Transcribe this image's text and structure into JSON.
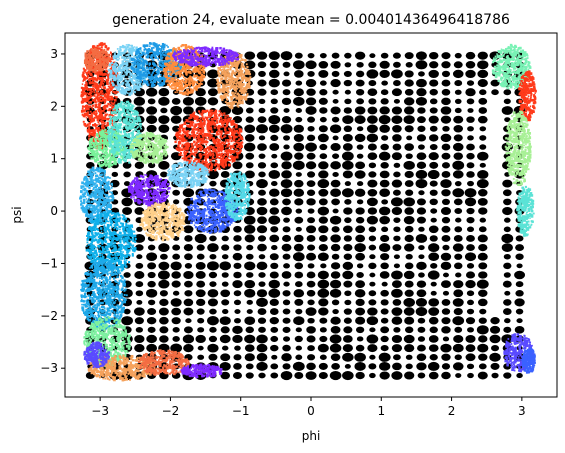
{
  "chart_data": {
    "type": "scatter",
    "title": "generation 24, evaluate mean = 0.00401436496418786",
    "xlabel": "phi",
    "ylabel": "psi",
    "xlim": [
      -3.5,
      3.5
    ],
    "ylim": [
      -3.55,
      3.4
    ],
    "x_ticks": [
      -3,
      -2,
      -1,
      0,
      1,
      2,
      3
    ],
    "y_ticks": [
      -3,
      -2,
      -1,
      0,
      1,
      2,
      3
    ],
    "x_tick_labels": [
      "−3",
      "−2",
      "−1",
      "0",
      "1",
      "2",
      "3"
    ],
    "y_tick_labels": [
      "−3",
      "−2",
      "−1",
      "0",
      "1",
      "2",
      "3"
    ],
    "grid": false,
    "legend": "none",
    "series": [
      {
        "kind": "grid_markers",
        "color": "#000000",
        "x_range": [
          -3.14,
          3.14
        ],
        "y_range": [
          -3.14,
          3.14
        ],
        "spacing": 0.1745,
        "x_cutoff_right_below_y_2.2": 2.4
      },
      {
        "kind": "clusters",
        "clusters": [
          {
            "x": -3.0,
            "y": 2.2,
            "w": 0.45,
            "h": 1.7,
            "color": "#ff3a1a"
          },
          {
            "x": -3.05,
            "y": 2.9,
            "w": 0.3,
            "h": 0.4,
            "color": "#f46d43"
          },
          {
            "x": -2.6,
            "y": 2.7,
            "w": 0.45,
            "h": 0.8,
            "color": "#7bd3f5"
          },
          {
            "x": -2.2,
            "y": 2.8,
            "w": 0.6,
            "h": 0.7,
            "color": "#1e9be6"
          },
          {
            "x": -1.8,
            "y": 2.7,
            "w": 0.5,
            "h": 0.8,
            "color": "#ff8c3c"
          },
          {
            "x": -1.1,
            "y": 2.5,
            "w": 0.4,
            "h": 0.9,
            "color": "#f5a25c"
          },
          {
            "x": -1.5,
            "y": 2.95,
            "w": 0.8,
            "h": 0.3,
            "color": "#7f2bff"
          },
          {
            "x": -2.9,
            "y": 1.2,
            "w": 0.45,
            "h": 0.6,
            "color": "#79f29a"
          },
          {
            "x": -3.05,
            "y": 0.3,
            "w": 0.4,
            "h": 0.9,
            "color": "#2fb1ee"
          },
          {
            "x": -2.65,
            "y": 1.5,
            "w": 0.4,
            "h": 1.0,
            "color": "#5be3d6"
          },
          {
            "x": -2.3,
            "y": 1.2,
            "w": 0.45,
            "h": 0.5,
            "color": "#a8f096"
          },
          {
            "x": -1.45,
            "y": 1.35,
            "w": 0.8,
            "h": 1.0,
            "color": "#ff3a1a"
          },
          {
            "x": -1.75,
            "y": 0.7,
            "w": 0.5,
            "h": 0.4,
            "color": "#7bd3f5"
          },
          {
            "x": -1.4,
            "y": 0.0,
            "w": 0.6,
            "h": 0.7,
            "color": "#3a62ff"
          },
          {
            "x": -1.05,
            "y": 0.3,
            "w": 0.3,
            "h": 0.8,
            "color": "#52d9e8"
          },
          {
            "x": -2.3,
            "y": 0.4,
            "w": 0.5,
            "h": 0.5,
            "color": "#7f2bff"
          },
          {
            "x": -2.1,
            "y": -0.2,
            "w": 0.55,
            "h": 0.6,
            "color": "#ffd08a"
          },
          {
            "x": -2.85,
            "y": -0.6,
            "w": 0.6,
            "h": 1.0,
            "color": "#0fb0ea"
          },
          {
            "x": -2.95,
            "y": -1.6,
            "w": 0.55,
            "h": 1.1,
            "color": "#1fa8e8"
          },
          {
            "x": -2.9,
            "y": -2.5,
            "w": 0.55,
            "h": 0.8,
            "color": "#7ef0a0"
          },
          {
            "x": -2.7,
            "y": -3.0,
            "w": 0.8,
            "h": 0.4,
            "color": "#f5a25c"
          },
          {
            "x": -3.05,
            "y": -2.75,
            "w": 0.3,
            "h": 0.4,
            "color": "#5a4bff"
          },
          {
            "x": -2.1,
            "y": -2.9,
            "w": 0.6,
            "h": 0.4,
            "color": "#f46d43"
          },
          {
            "x": -1.55,
            "y": -3.05,
            "w": 0.5,
            "h": 0.2,
            "color": "#7f2bff"
          },
          {
            "x": 2.85,
            "y": 2.75,
            "w": 0.45,
            "h": 0.7,
            "color": "#79f2b5"
          },
          {
            "x": 3.08,
            "y": 2.2,
            "w": 0.2,
            "h": 0.8,
            "color": "#ff3a1a"
          },
          {
            "x": 2.95,
            "y": 1.2,
            "w": 0.3,
            "h": 1.2,
            "color": "#a8f096"
          },
          {
            "x": 3.05,
            "y": 0.0,
            "w": 0.2,
            "h": 0.8,
            "color": "#5be3d6"
          },
          {
            "x": 2.95,
            "y": -2.7,
            "w": 0.35,
            "h": 0.6,
            "color": "#5a4bff"
          },
          {
            "x": 3.1,
            "y": -2.85,
            "w": 0.15,
            "h": 0.4,
            "color": "#3a62ff"
          }
        ]
      }
    ]
  }
}
